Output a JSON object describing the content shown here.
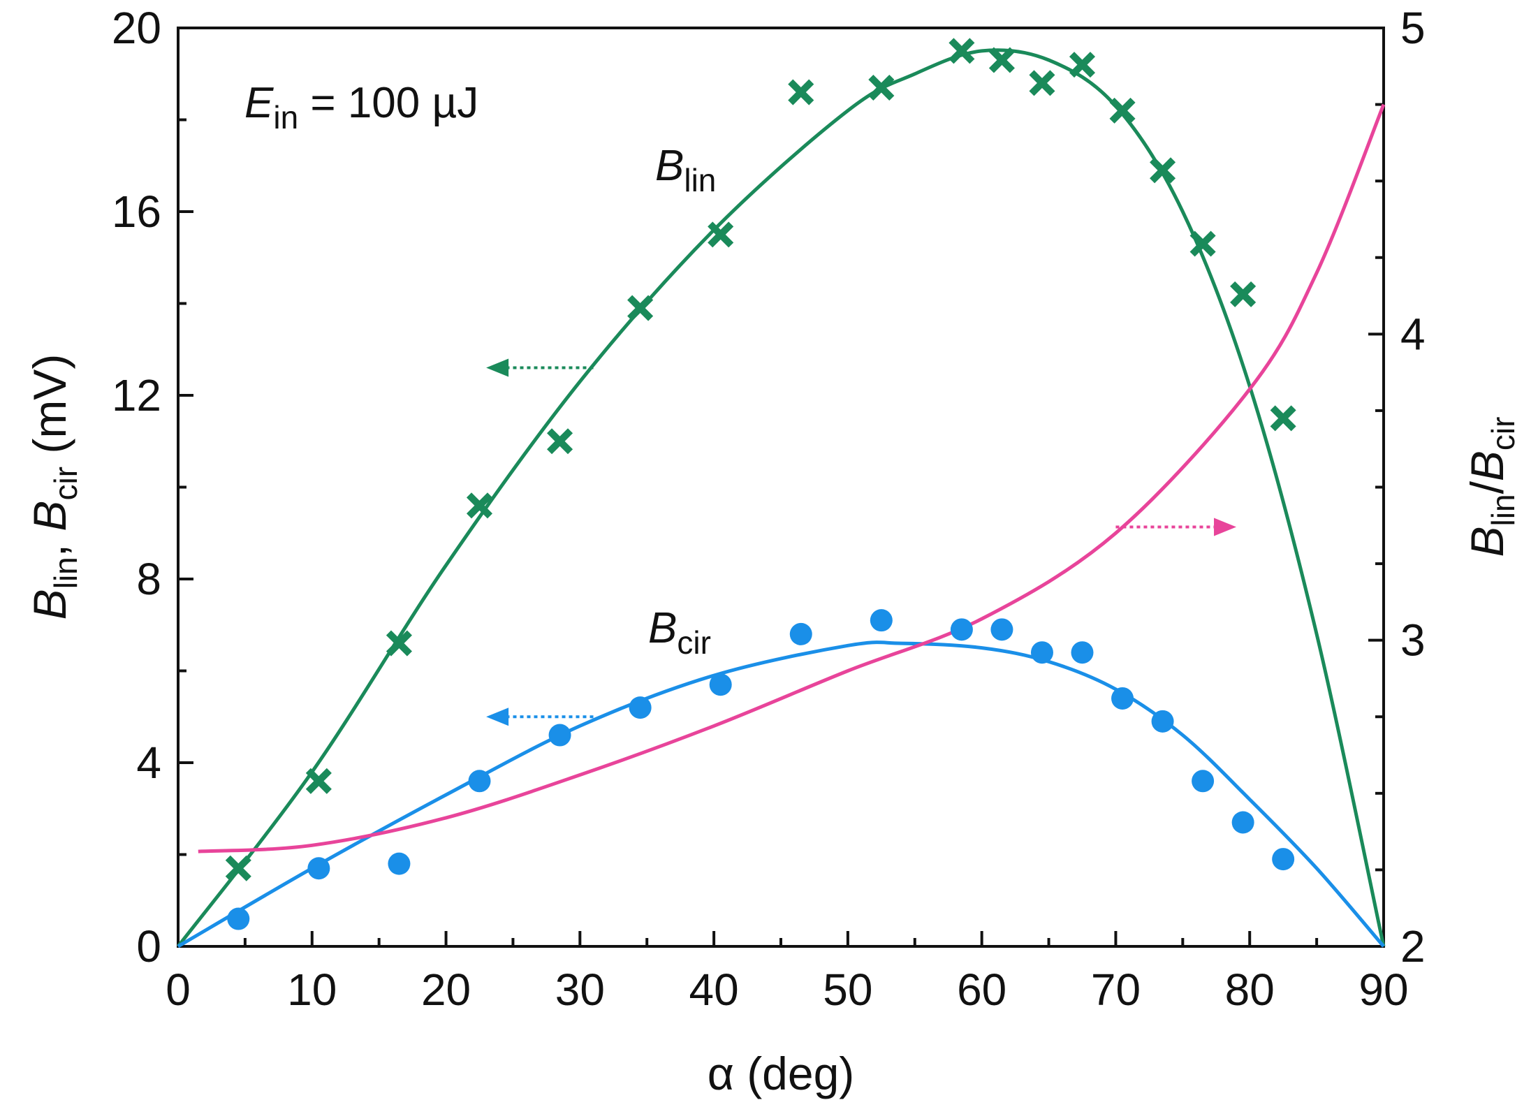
{
  "chart_data": {
    "type": "scatter",
    "annotation": {
      "symbol": "E",
      "subscript": "in",
      "rest": " = 100 µJ"
    },
    "xaxis": {
      "label": "α (deg)",
      "range": [
        0,
        90
      ],
      "ticks": [
        0,
        10,
        20,
        30,
        40,
        50,
        60,
        70,
        80,
        90
      ]
    },
    "yaxis_left": {
      "label": {
        "a": "B",
        "a_sub": "lin",
        "sep": ", ",
        "b": "B",
        "b_sub": "cir",
        "unit": " (mV)"
      },
      "range": [
        0,
        20
      ],
      "ticks": [
        0,
        4,
        8,
        12,
        16,
        20
      ]
    },
    "yaxis_right": {
      "label": {
        "a": "B",
        "a_sub": "lin",
        "sep": "/",
        "b": "B",
        "b_sub": "cir"
      },
      "range": [
        2,
        5
      ],
      "ticks": [
        2,
        3,
        4,
        5
      ]
    },
    "series": [
      {
        "name": "B_lin",
        "label": "B",
        "label_sub": "lin",
        "axis": "left",
        "marker": "x",
        "color": "#1a8a5a",
        "x": [
          4.5,
          10.5,
          16.5,
          22.5,
          28.5,
          34.5,
          40.5,
          46.5,
          52.5,
          58.5,
          61.5,
          64.5,
          67.5,
          70.5,
          73.5,
          76.5,
          79.5,
          82.5
        ],
        "y": [
          1.7,
          3.6,
          6.6,
          9.6,
          11.0,
          13.9,
          15.5,
          18.6,
          18.7,
          19.5,
          19.3,
          18.8,
          19.2,
          18.2,
          16.9,
          15.3,
          14.2,
          11.5
        ]
      },
      {
        "name": "B_cir",
        "label": "B",
        "label_sub": "cir",
        "axis": "left",
        "marker": "circle",
        "color": "#1a8fe8",
        "x": [
          4.5,
          10.5,
          16.5,
          22.5,
          28.5,
          34.5,
          40.5,
          46.5,
          52.5,
          58.5,
          61.5,
          64.5,
          67.5,
          70.5,
          73.5,
          76.5,
          79.5,
          82.5
        ],
        "y": [
          0.6,
          1.7,
          1.8,
          3.6,
          4.6,
          5.2,
          5.7,
          6.8,
          7.1,
          6.9,
          6.9,
          6.4,
          6.4,
          5.4,
          4.9,
          3.6,
          2.7,
          1.9
        ]
      }
    ],
    "fits": [
      {
        "name": "B_lin fit",
        "axis": "left",
        "color": "#1a8a5a",
        "x": [
          0,
          10,
          20,
          30,
          40,
          50,
          55,
          60,
          65,
          70,
          75,
          80,
          85,
          90
        ],
        "y": [
          0,
          3.8,
          8.3,
          12.3,
          15.6,
          18.2,
          19.0,
          19.5,
          19.3,
          18.3,
          16.0,
          12.2,
          6.8,
          0
        ]
      },
      {
        "name": "B_cir fit",
        "axis": "left",
        "color": "#1a8fe8",
        "x": [
          0,
          10,
          20,
          30,
          40,
          50,
          54,
          60,
          65,
          70,
          75,
          80,
          85,
          90
        ],
        "y": [
          0,
          1.7,
          3.3,
          4.8,
          5.9,
          6.55,
          6.6,
          6.5,
          6.2,
          5.6,
          4.6,
          3.2,
          1.7,
          0
        ]
      },
      {
        "name": "B_lin/B_cir",
        "axis": "right",
        "color": "#e8449a",
        "x": [
          1.5,
          10,
          20,
          30,
          40,
          50,
          60,
          70,
          80,
          85,
          90
        ],
        "y": [
          2.31,
          2.33,
          2.42,
          2.56,
          2.72,
          2.9,
          3.07,
          3.35,
          3.82,
          4.2,
          4.75
        ]
      }
    ],
    "arrows": [
      {
        "name": "B_lin arrow",
        "direction": "left",
        "axis": "left",
        "color": "#1a8a5a",
        "x_from": 31,
        "x_to": 23,
        "y": 12.6
      },
      {
        "name": "B_cir arrow",
        "direction": "left",
        "axis": "left",
        "color": "#1a8fe8",
        "x_from": 31,
        "x_to": 23,
        "y": 5.0
      },
      {
        "name": "ratio arrow",
        "direction": "right",
        "axis": "right",
        "color": "#e8449a",
        "x_from": 70,
        "x_to": 79,
        "y": 3.37
      }
    ]
  }
}
